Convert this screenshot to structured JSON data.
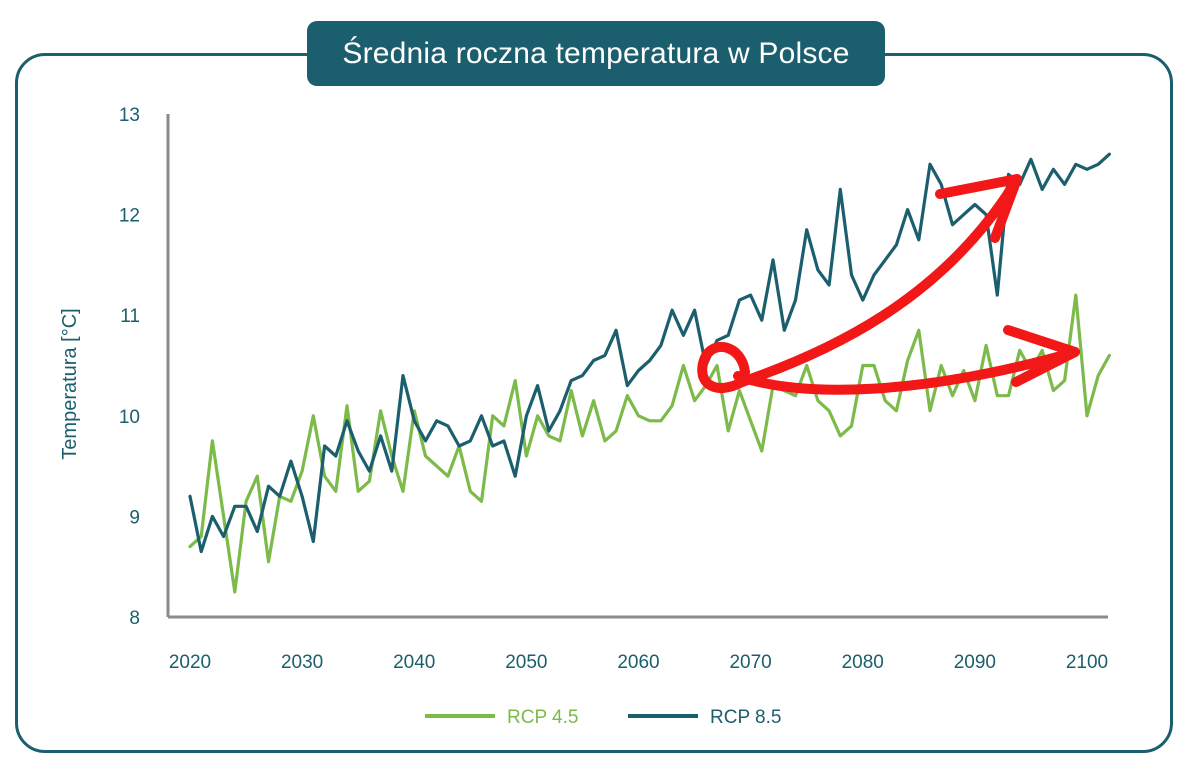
{
  "chart_data": {
    "type": "line",
    "title": "Średnia roczna temperatura w Polsce",
    "xlabel": "",
    "ylabel": "Temperatura [°C]",
    "xlim": [
      2020,
      2102
    ],
    "ylim": [
      8,
      13
    ],
    "x_ticks": [
      "2020",
      "2030",
      "2040",
      "2050",
      "2060",
      "2070",
      "2080",
      "2090",
      "2100"
    ],
    "y_ticks": [
      "8",
      "9",
      "10",
      "11",
      "12",
      "13"
    ],
    "grid": false,
    "legend": "bottom-center",
    "x": [
      2020,
      2021,
      2022,
      2023,
      2024,
      2025,
      2026,
      2027,
      2028,
      2029,
      2030,
      2031,
      2032,
      2033,
      2034,
      2035,
      2036,
      2037,
      2038,
      2039,
      2040,
      2041,
      2042,
      2043,
      2044,
      2045,
      2046,
      2047,
      2048,
      2049,
      2050,
      2051,
      2052,
      2053,
      2054,
      2055,
      2056,
      2057,
      2058,
      2059,
      2060,
      2061,
      2062,
      2063,
      2064,
      2065,
      2066,
      2067,
      2068,
      2069,
      2070,
      2071,
      2072,
      2073,
      2074,
      2075,
      2076,
      2077,
      2078,
      2079,
      2080,
      2081,
      2082,
      2083,
      2084,
      2085,
      2086,
      2087,
      2088,
      2089,
      2090,
      2091,
      2092,
      2093,
      2094,
      2095,
      2096,
      2097,
      2098,
      2099,
      2100,
      2101,
      2102
    ],
    "series": [
      {
        "name": "RCP 4.5",
        "color": "#7cba4a",
        "values": [
          8.7,
          8.8,
          9.75,
          9.0,
          8.25,
          9.15,
          9.4,
          8.55,
          9.2,
          9.15,
          9.45,
          10.0,
          9.4,
          9.25,
          10.1,
          9.25,
          9.35,
          10.05,
          9.6,
          9.25,
          10.05,
          9.6,
          9.5,
          9.4,
          9.7,
          9.25,
          9.15,
          10.0,
          9.9,
          10.35,
          9.6,
          10.0,
          9.8,
          9.75,
          10.25,
          9.8,
          10.15,
          9.75,
          9.85,
          10.2,
          10.0,
          9.95,
          9.95,
          10.1,
          10.5,
          10.15,
          10.3,
          10.5,
          9.85,
          10.25,
          9.95,
          9.65,
          10.3,
          10.25,
          10.2,
          10.5,
          10.15,
          10.05,
          9.8,
          9.9,
          10.5,
          10.5,
          10.15,
          10.05,
          10.55,
          10.85,
          10.05,
          10.5,
          10.2,
          10.45,
          10.15,
          10.7,
          10.2,
          10.2,
          10.65,
          10.45,
          10.65,
          10.25,
          10.35,
          11.2,
          10.0,
          10.4,
          10.6
        ]
      },
      {
        "name": "RCP 8.5",
        "color": "#1b5f6e",
        "values": [
          9.2,
          8.65,
          9.0,
          8.8,
          9.1,
          9.1,
          8.85,
          9.3,
          9.2,
          9.55,
          9.2,
          8.75,
          9.7,
          9.6,
          9.95,
          9.65,
          9.45,
          9.8,
          9.45,
          10.4,
          9.95,
          9.75,
          9.95,
          9.9,
          9.7,
          9.75,
          10.0,
          9.7,
          9.75,
          9.4,
          10.0,
          10.3,
          9.85,
          10.05,
          10.35,
          10.4,
          10.55,
          10.6,
          10.85,
          10.3,
          10.45,
          10.55,
          10.7,
          11.05,
          10.8,
          11.05,
          10.5,
          10.75,
          10.8,
          11.15,
          11.2,
          10.95,
          11.55,
          10.85,
          11.15,
          11.85,
          11.45,
          11.3,
          12.25,
          11.4,
          11.15,
          11.4,
          11.55,
          11.7,
          12.05,
          11.75,
          12.5,
          12.3,
          11.9,
          12.0,
          12.1,
          12.0,
          11.2,
          12.4,
          12.3,
          12.55,
          12.25,
          12.45,
          12.3,
          12.5,
          12.45,
          12.5,
          12.6
        ]
      }
    ]
  }
}
